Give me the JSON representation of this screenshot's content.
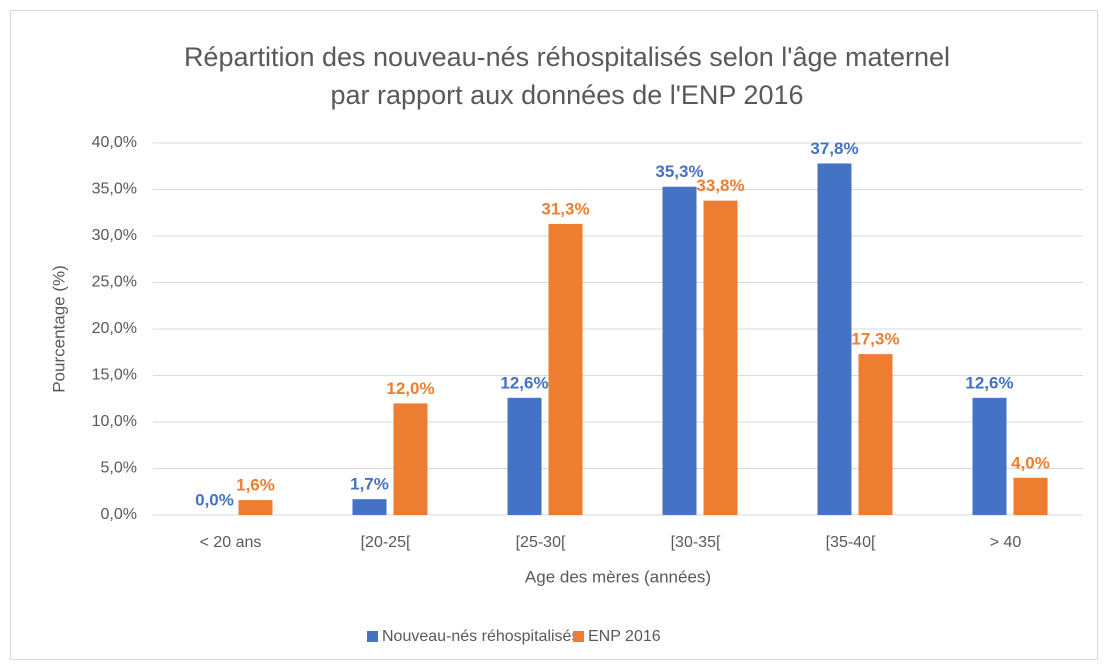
{
  "chart_data": {
    "type": "bar",
    "title": "Répartition des nouveau-nés réhospitalisés selon l'âge maternel par rapport aux données de l'ENP 2016",
    "x_label": "Age des mères (années)",
    "y_label": "Pourcentage (%)",
    "categories": [
      "< 20 ans",
      "[20-25[",
      "[25-30[",
      "[30-35[",
      "[35-40[",
      "> 40"
    ],
    "series": [
      {
        "name": "Nouveau-nés réhospitalisés",
        "color": "#4472c4",
        "values": [
          0.0,
          1.7,
          12.6,
          35.3,
          37.8,
          12.6
        ],
        "value_labels": [
          "0,0%",
          "1,7%",
          "12,6%",
          "35,3%",
          "37,8%",
          "12,6%"
        ]
      },
      {
        "name": "ENP 2016",
        "color": "#ed7d31",
        "values": [
          1.6,
          12.0,
          31.3,
          33.8,
          17.3,
          4.0
        ],
        "value_labels": [
          "1,6%",
          "12,0%",
          "31,3%",
          "33,8%",
          "17,3%",
          "4,0%"
        ]
      }
    ],
    "ylim": [
      0,
      40
    ],
    "yticks": [
      {
        "value": 0,
        "label": "0,0%"
      },
      {
        "value": 5,
        "label": "5,0%"
      },
      {
        "value": 10,
        "label": "10,0%"
      },
      {
        "value": 15,
        "label": "15,0%"
      },
      {
        "value": 20,
        "label": "20,0%"
      },
      {
        "value": 25,
        "label": "25,0%"
      },
      {
        "value": 30,
        "label": "30,0%"
      },
      {
        "value": 35,
        "label": "35,0%"
      },
      {
        "value": 40,
        "label": "40,0%"
      }
    ],
    "grid": true,
    "legend": "bottom"
  }
}
